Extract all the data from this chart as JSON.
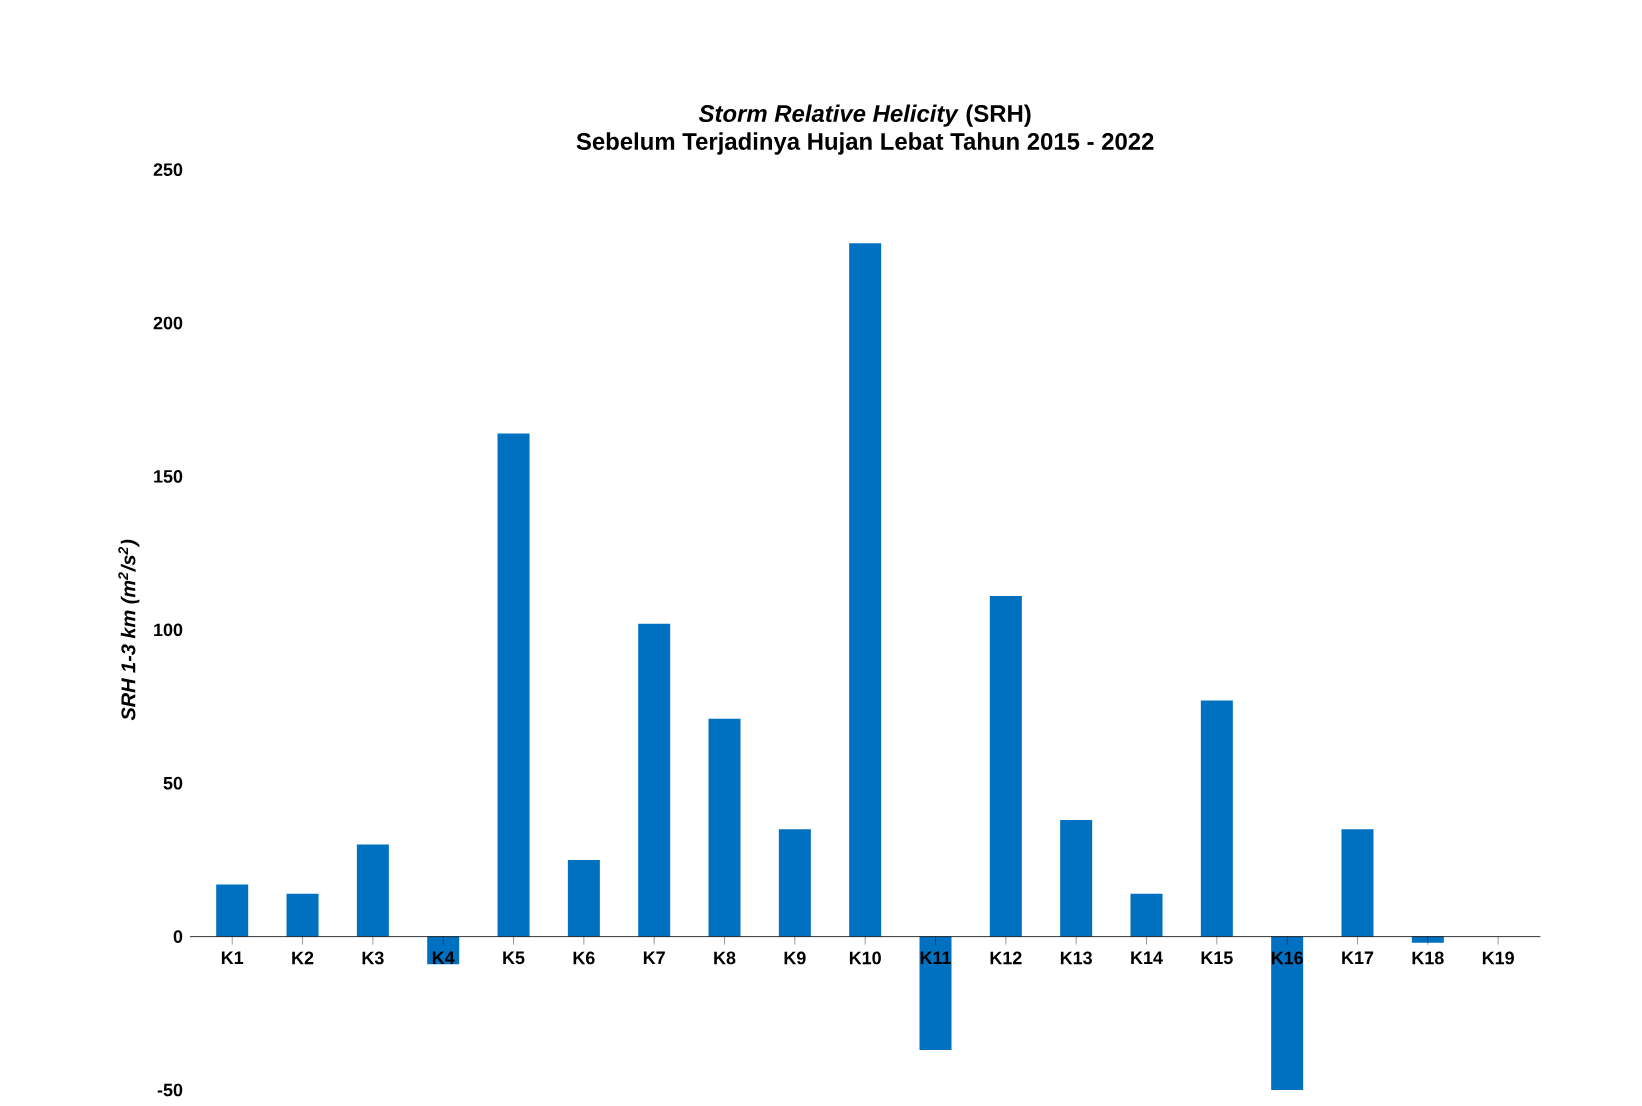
{
  "chart_data": {
    "type": "bar",
    "title": "*Storm Relative Helicity* (SRH)",
    "subtitle": "Sebelum Terjadinya Hujan Lebat Tahun 2015 - 2022",
    "ylabel": "SRH 1-3 km (m$^{2}$/s$^{2}$)",
    "categories": [
      "K1",
      "K2",
      "K3",
      "K4",
      "K5",
      "K6",
      "K7",
      "K8",
      "K9",
      "K10",
      "K11",
      "K12",
      "K13",
      "K14",
      "K15",
      "K16",
      "K17",
      "K18",
      "K19"
    ],
    "values": [
      17,
      14,
      30,
      -9,
      164,
      25,
      102,
      71,
      35,
      226,
      -37,
      111,
      38,
      14,
      77,
      -50,
      35,
      -2,
      0
    ],
    "color": "#0070c0",
    "ylim": [
      -50,
      250
    ],
    "yticks": [
      -50,
      0,
      50,
      100,
      150,
      200,
      250
    ],
    "grid": false
  }
}
